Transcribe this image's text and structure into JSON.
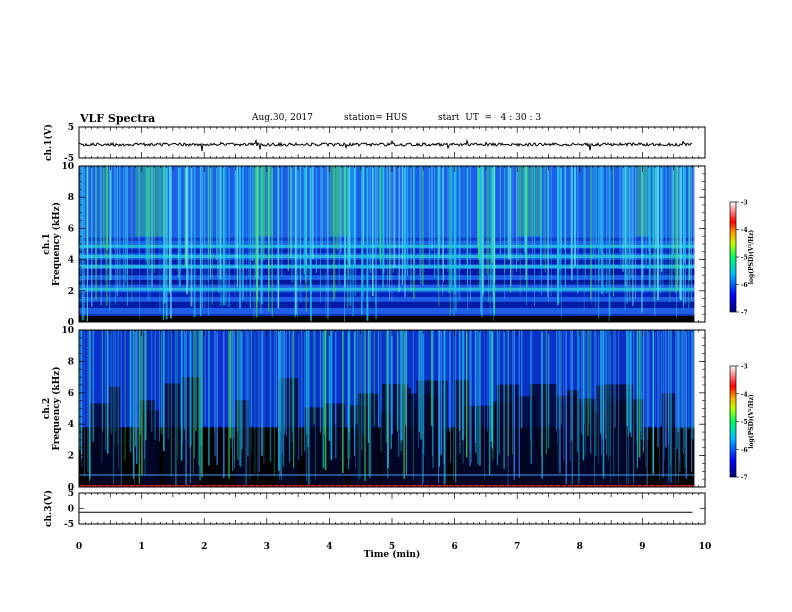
{
  "header": {
    "title": "VLF Spectra",
    "date": "Aug.30, 2017",
    "station": "station= HUS",
    "start": "start  UT  =   4 : 30 : 3"
  },
  "colors": {
    "spectrogram_dark": "#000000",
    "spectrogram_blue": "#0a3cd8",
    "spectrogram_cyan": "#20c8e8",
    "spectrogram_green": "#40e060",
    "colorbar_low": "#0000a0",
    "colorbar_high": "#ffffff"
  },
  "chart_data": [
    {
      "type": "line",
      "panel": "ch1 waveform",
      "ylabel": "ch.1(V)",
      "ylim": [
        -5,
        5
      ],
      "yticks": [
        "5",
        "-5"
      ],
      "description_values": "waveform trace around 0 V with small spikes"
    },
    {
      "type": "heatmap",
      "panel": "ch1 spectrogram",
      "ylabel": "ch.1\nFrequency (kHz)",
      "ylabel_line1": "ch.1",
      "ylabel_line2": "Frequency (kHz)",
      "ylim": [
        0,
        10
      ],
      "yticks": [
        "0",
        "2",
        "4",
        "6",
        "8",
        "10"
      ],
      "xlim": [
        0,
        10
      ],
      "colorbar": {
        "label": "log(PSD)(V²/Hz)",
        "range": [
          -7,
          -3
        ],
        "ticks": [
          "-3",
          "-4",
          "-5",
          "-6",
          "-7"
        ]
      }
    },
    {
      "type": "heatmap",
      "panel": "ch2 spectrogram",
      "ylabel_line1": "ch.2",
      "ylabel_line2": "Frequency (kHz)",
      "ylim": [
        0,
        10
      ],
      "yticks": [
        "0",
        "2",
        "4",
        "6",
        "8",
        "10"
      ],
      "xlim": [
        0,
        10
      ],
      "colorbar": {
        "label": "log(PSD)(V²/Hz)",
        "range": [
          -7,
          -3
        ],
        "ticks": [
          "-3",
          "-4",
          "-5",
          "-6",
          "-7"
        ]
      }
    },
    {
      "type": "line",
      "panel": "ch3 waveform",
      "ylabel": "ch.3(V)",
      "ylim": [
        -5,
        5
      ],
      "yticks": [
        "5",
        "0",
        "-5"
      ],
      "x": [
        0,
        9.8
      ],
      "y": [
        -1.2,
        -1.2
      ]
    }
  ],
  "xaxis": {
    "label": "Time  (min)",
    "range": [
      0,
      10
    ],
    "ticks": [
      "0",
      "1",
      "2",
      "3",
      "4",
      "5",
      "6",
      "7",
      "8",
      "9",
      "10"
    ]
  }
}
